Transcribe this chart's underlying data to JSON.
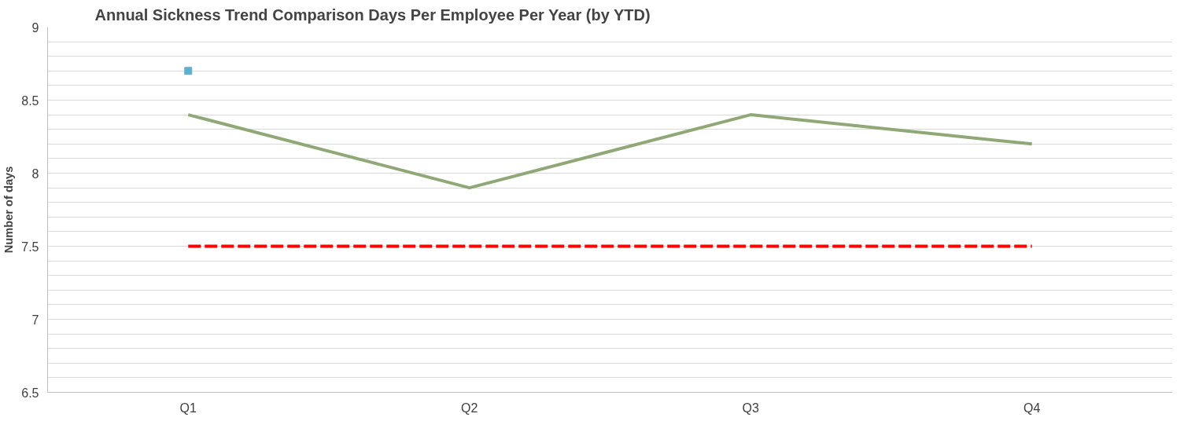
{
  "chart_data": {
    "type": "line",
    "title": "Annual Sickness Trend Comparison Days Per Employee Per Year (by YTD)",
    "ylabel": "Number of days",
    "categories": [
      "Q1",
      "Q2",
      "Q3",
      "Q4"
    ],
    "series": [
      {
        "color": "#8fa876",
        "values": [
          8.4,
          7.9,
          8.4,
          8.2
        ],
        "line_style": "solid",
        "marker": "none"
      },
      {
        "color": "#ff0000",
        "values": [
          7.5,
          7.5,
          7.5,
          7.5
        ],
        "line_style": "dashed",
        "marker": "none"
      },
      {
        "type": "scatter",
        "color": "#5fb0cc",
        "values": [
          8.7,
          null,
          null,
          null
        ],
        "marker": "square"
      }
    ],
    "ylim": [
      6.5,
      9
    ],
    "yticks": [
      6.5,
      {
        "value": 6.6,
        "label": null
      },
      {
        "value": 6.7,
        "label": null
      },
      {
        "value": 6.8,
        "label": null
      },
      {
        "value": 6.9,
        "label": null
      },
      7,
      {
        "value": 7.1,
        "label": null
      },
      {
        "value": 7.2,
        "label": null
      },
      {
        "value": 7.3,
        "label": null
      },
      {
        "value": 7.4,
        "label": null
      },
      7.5,
      {
        "value": 7.6,
        "label": null
      },
      {
        "value": 7.7,
        "label": null
      },
      {
        "value": 7.8,
        "label": null
      },
      {
        "value": 7.9,
        "label": null
      },
      8,
      {
        "value": 8.1,
        "label": null
      },
      {
        "value": 8.2,
        "label": null
      },
      {
        "value": 8.3,
        "label": null
      },
      {
        "value": 8.4,
        "label": null
      },
      8.5,
      {
        "value": 8.6,
        "label": null
      },
      {
        "value": 8.7,
        "label": null
      },
      {
        "value": 8.8,
        "label": null
      },
      {
        "value": 8.9,
        "label": null
      },
      9
    ],
    "grid": "y"
  }
}
